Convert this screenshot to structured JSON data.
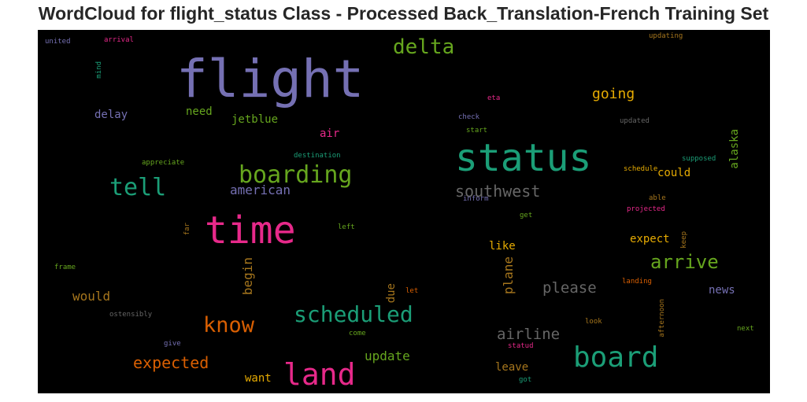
{
  "title": "WordCloud for flight_status Class - Processed Back_Translation-French Training Set",
  "words": [
    {
      "text": "flight",
      "color": "#7570b3"
    },
    {
      "text": "status",
      "color": "#1b9e77"
    },
    {
      "text": "time",
      "color": "#e7298a"
    },
    {
      "text": "board",
      "color": "#1b9e77"
    },
    {
      "text": "land",
      "color": "#e7298a"
    },
    {
      "text": "boarding",
      "color": "#66a61e"
    },
    {
      "text": "scheduled",
      "color": "#1b9e77"
    },
    {
      "text": "tell",
      "color": "#1b9e77"
    },
    {
      "text": "know",
      "color": "#d95f02"
    },
    {
      "text": "delta",
      "color": "#66a61e"
    },
    {
      "text": "arrive",
      "color": "#66a61e"
    },
    {
      "text": "southwest",
      "color": "#666666"
    },
    {
      "text": "expected",
      "color": "#d95f02"
    },
    {
      "text": "airline",
      "color": "#666666"
    },
    {
      "text": "please",
      "color": "#666666"
    },
    {
      "text": "going",
      "color": "#e6ab02"
    },
    {
      "text": "american",
      "color": "#7570b3"
    },
    {
      "text": "update",
      "color": "#66a61e"
    },
    {
      "text": "would",
      "color": "#a6761d"
    },
    {
      "text": "begin",
      "color": "#a6761d"
    },
    {
      "text": "plane",
      "color": "#a6761d"
    },
    {
      "text": "delay",
      "color": "#7570b3"
    },
    {
      "text": "need",
      "color": "#66a61e"
    },
    {
      "text": "jetblue",
      "color": "#66a61e"
    },
    {
      "text": "air",
      "color": "#e7298a"
    },
    {
      "text": "could",
      "color": "#e6ab02"
    },
    {
      "text": "expect",
      "color": "#e6ab02"
    },
    {
      "text": "like",
      "color": "#e6ab02"
    },
    {
      "text": "news",
      "color": "#7570b3"
    },
    {
      "text": "leave",
      "color": "#a6761d"
    },
    {
      "text": "want",
      "color": "#e6ab02"
    },
    {
      "text": "due",
      "color": "#a6761d"
    },
    {
      "text": "alaska",
      "color": "#66a61e"
    },
    {
      "text": "united",
      "color": "#7570b3"
    },
    {
      "text": "arrival",
      "color": "#e7298a"
    },
    {
      "text": "mind",
      "color": "#1b9e77"
    },
    {
      "text": "updating",
      "color": "#a6761d"
    },
    {
      "text": "eta",
      "color": "#e7298a"
    },
    {
      "text": "check",
      "color": "#7570b3"
    },
    {
      "text": "start",
      "color": "#66a61e"
    },
    {
      "text": "updated",
      "color": "#666666"
    },
    {
      "text": "destination",
      "color": "#1b9e77"
    },
    {
      "text": "appreciate",
      "color": "#66a61e"
    },
    {
      "text": "supposed",
      "color": "#1b9e77"
    },
    {
      "text": "schedule",
      "color": "#e6ab02"
    },
    {
      "text": "able",
      "color": "#a6761d"
    },
    {
      "text": "projected",
      "color": "#e7298a"
    },
    {
      "text": "inform",
      "color": "#7570b3"
    },
    {
      "text": "get",
      "color": "#66a61e"
    },
    {
      "text": "far",
      "color": "#a6761d"
    },
    {
      "text": "left",
      "color": "#66a61e"
    },
    {
      "text": "keep",
      "color": "#a6761d"
    },
    {
      "text": "frame",
      "color": "#66a61e"
    },
    {
      "text": "landing",
      "color": "#d95f02"
    },
    {
      "text": "let",
      "color": "#d95f02"
    },
    {
      "text": "afternoon",
      "color": "#a6761d"
    },
    {
      "text": "ostensibly",
      "color": "#666666"
    },
    {
      "text": "look",
      "color": "#a6761d"
    },
    {
      "text": "next",
      "color": "#66a61e"
    },
    {
      "text": "give",
      "color": "#7570b3"
    },
    {
      "text": "come",
      "color": "#66a61e"
    },
    {
      "text": "statud",
      "color": "#e7298a"
    },
    {
      "text": "got",
      "color": "#1b9e77"
    }
  ]
}
